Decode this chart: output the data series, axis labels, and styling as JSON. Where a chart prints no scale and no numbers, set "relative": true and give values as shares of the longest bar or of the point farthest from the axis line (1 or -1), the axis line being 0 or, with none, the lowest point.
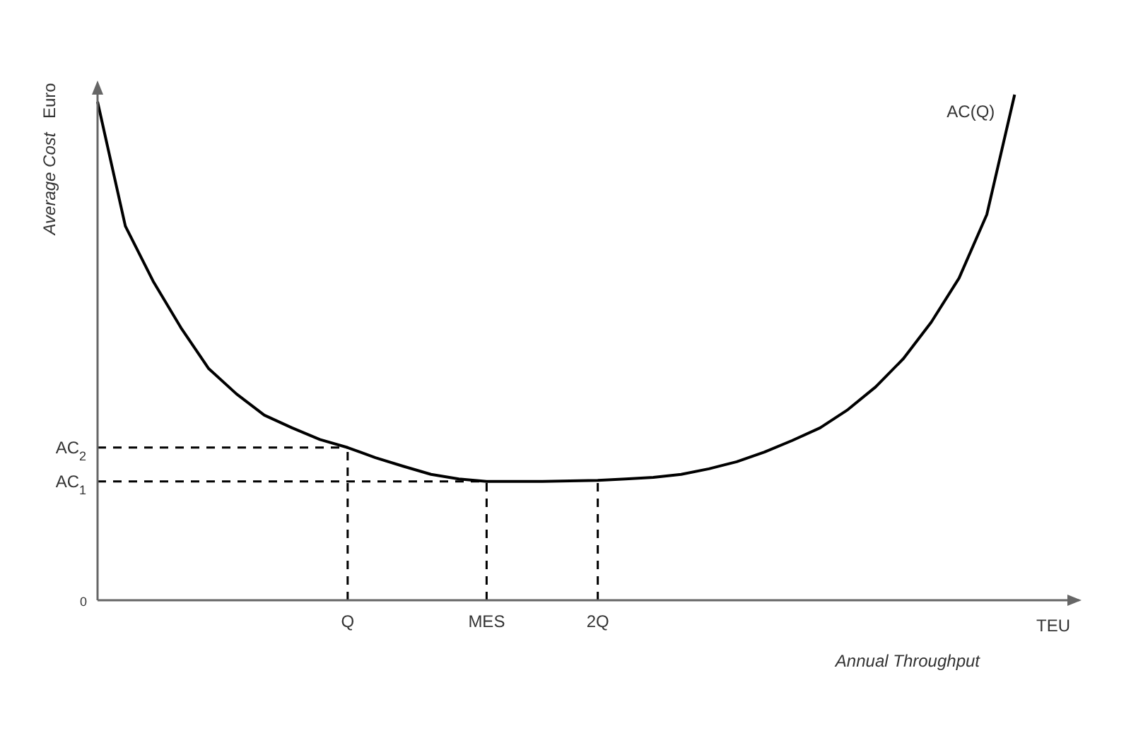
{
  "chart_data": {
    "type": "line",
    "relative": true,
    "xlabel": "Annual Throughput",
    "ylabel": "Average Cost",
    "annotations": [
      "0",
      "Euro",
      "TEU"
    ],
    "categories": [
      null,
      null,
      null,
      null,
      null,
      null,
      null,
      null,
      null,
      "Q",
      null,
      null,
      null,
      null,
      "MES",
      null,
      null,
      null,
      "2Q",
      null,
      null,
      null,
      null,
      null,
      null,
      null,
      null,
      null,
      null,
      null,
      null,
      null,
      null,
      null
    ],
    "series": [
      {
        "name": "AC(Q)",
        "color": "#000000",
        "values": [
          0.986,
          0.74,
          0.631,
          0.539,
          0.458,
          0.408,
          0.366,
          0.341,
          0.318,
          0.302,
          0.282,
          0.265,
          0.249,
          0.24,
          0.235,
          0.235,
          0.235,
          0.236,
          0.237,
          0.24,
          0.243,
          0.249,
          0.26,
          0.274,
          0.293,
          0.316,
          0.341,
          0.377,
          0.422,
          0.478,
          0.55,
          0.637,
          0.763,
          1
        ]
      }
    ],
    "ref_lines": [
      {
        "axis": "y",
        "value": 0.302,
        "label": "AC$_{2}$",
        "line_style": "dashed"
      },
      {
        "axis": "y",
        "value": 0.235,
        "label": "AC$_{1}$",
        "line_style": "dashed"
      },
      {
        "axis": "x",
        "value": "Q",
        "line_style": "dashed"
      },
      {
        "axis": "x",
        "value": "MES",
        "line_style": "dashed"
      },
      {
        "axis": "x",
        "value": "2Q",
        "line_style": "dashed"
      }
    ]
  }
}
